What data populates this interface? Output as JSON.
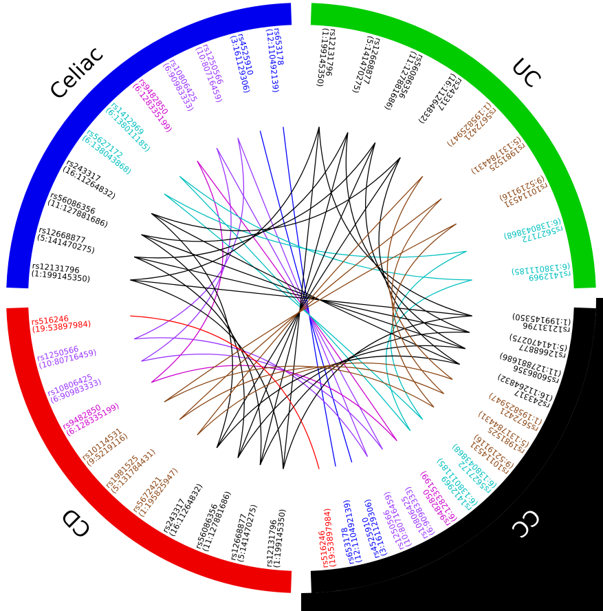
{
  "chart_data": {
    "type": "chord",
    "title": "",
    "description": "Circos-style chord plot of SNPs shared among disease categories; radial SNP labels show rs-id and (chromosome:position); chords connect identical SNPs across sections and are colored by SNP group color",
    "legend_position": "none",
    "sections": [
      {
        "name": "Celiac",
        "band_color": "#0000EE",
        "label_order": [
          "rs653178",
          "rs4525910",
          "rs1250566",
          "rs10806425",
          "rs9482850",
          "rs1412969",
          "rs5627172",
          "rs243317",
          "rs56086356",
          "rs12668877",
          "rs12131796"
        ]
      },
      {
        "name": "UC",
        "band_color": "#00CC00",
        "label_order": [
          "rs12131796",
          "rs12668877",
          "rs56086356",
          "rs243317",
          "rs5672421",
          "rs1981525",
          "rs10114531",
          "rs5627172",
          "rs1412969"
        ]
      },
      {
        "name": "CC",
        "band_color": "#000000",
        "label_order": [
          "rs12131796",
          "rs12668877",
          "rs56086356",
          "rs243317",
          "rs5672421",
          "rs1981525",
          "rs10114531",
          "rs5627172",
          "rs1412969",
          "rs9482850",
          "rs10806425",
          "rs1250566",
          "rs4525910",
          "rs653178",
          "rs516246"
        ]
      },
      {
        "name": "CD",
        "band_color": "#EE0000",
        "label_order": [
          "rs12131796",
          "rs12668877",
          "rs56086356",
          "rs243317",
          "rs5672421",
          "rs1981525",
          "rs10114531",
          "rs9482850",
          "rs10806425",
          "rs1250566",
          "rs516246"
        ]
      }
    ],
    "snps": {
      "rs12131796": {
        "locus": "(1:199145350)",
        "color": "#000000"
      },
      "rs12668877": {
        "locus": "(5:141470275)",
        "color": "#000000"
      },
      "rs56086356": {
        "locus": "(11:127881686)",
        "color": "#000000"
      },
      "rs243317": {
        "locus": "(16:11264832)",
        "color": "#000000"
      },
      "rs5672421": {
        "locus": "(1:195825947)",
        "color": "#8B4513"
      },
      "rs1981525": {
        "locus": "(5:131784431)",
        "color": "#8B4513"
      },
      "rs10114531": {
        "locus": "(9:5219116)",
        "color": "#8B4513"
      },
      "rs5627172": {
        "locus": "(6:138043868)",
        "color": "#00BFBF"
      },
      "rs1412969": {
        "locus": "(6:138011185)",
        "color": "#00BFBF"
      },
      "rs9482850": {
        "locus": "(6:128335199)",
        "color": "#CC00CC"
      },
      "rs10806425": {
        "locus": "(6:90983333)",
        "color": "#9933FF"
      },
      "rs1250566": {
        "locus": "(10:80716459)",
        "color": "#9933FF"
      },
      "rs653178": {
        "locus": "(12:110492139)",
        "color": "#0000FF"
      },
      "rs4525910": {
        "locus": "(3:161129306)",
        "color": "#0000FF"
      },
      "rs516246": {
        "locus": "(19:53897984)",
        "color": "#FF0000"
      }
    },
    "links": {
      "rule": "a chord connects every pair of sections that share the same SNP; chord color equals the SNP label color",
      "count": 51
    },
    "colors": {
      "shared_all_four": "#000000",
      "uc_cc_cd": "#8B4513",
      "celiac_uc_cc": "#00BFBF",
      "celiac_cc_cd_purple": "#9933FF",
      "celiac_cc_cd_magenta": "#CC00CC",
      "celiac_cc": "#0000FF",
      "cd_cc": "#FF0000",
      "corner_fill": "#000000",
      "background": "#FFFFFF"
    }
  }
}
